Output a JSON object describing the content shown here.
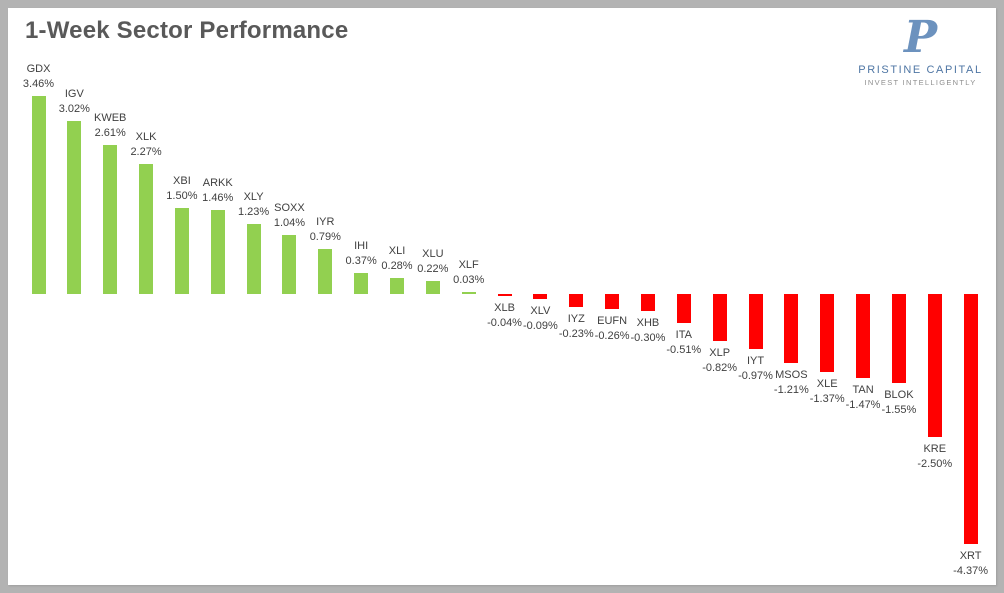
{
  "title": "1-Week Sector Performance",
  "logo": {
    "monogram": "P",
    "name": "PRISTINE CAPITAL",
    "tagline": "INVEST INTELLIGENTLY"
  },
  "colors": {
    "positive_bar": "#92D050",
    "negative_bar": "#FF0000",
    "title_text": "#595959",
    "label_text": "#404040",
    "frame": "#B3B3B3",
    "logo_blue": "#4F76A4",
    "logo_monogram_blue": "#6C92BE",
    "logo_gray": "#8E8E8E"
  },
  "chart_data": {
    "type": "bar",
    "title": "1-Week Sector Performance",
    "xlabel": "",
    "ylabel": "",
    "grid": false,
    "axes_visible": false,
    "legend": "none",
    "label_position": "outside-end",
    "ylim": [
      -4.37,
      3.46
    ],
    "categories": [
      "GDX",
      "IGV",
      "KWEB",
      "XLK",
      "XBI",
      "ARKK",
      "XLY",
      "SOXX",
      "IYR",
      "IHI",
      "XLI",
      "XLU",
      "XLF",
      "XLB",
      "XLV",
      "IYZ",
      "EUFN",
      "XHB",
      "ITA",
      "XLP",
      "IYT",
      "MSOS",
      "XLE",
      "TAN",
      "BLOK",
      "KRE",
      "XRT"
    ],
    "values": [
      3.46,
      3.02,
      2.61,
      2.27,
      1.5,
      1.46,
      1.23,
      1.04,
      0.79,
      0.37,
      0.28,
      0.22,
      0.03,
      -0.04,
      -0.09,
      -0.23,
      -0.26,
      -0.3,
      -0.51,
      -0.82,
      -0.97,
      -1.21,
      -1.37,
      -1.47,
      -1.55,
      -2.5,
      -4.37
    ],
    "display_values": [
      "3.46%",
      "3.02%",
      "2.61%",
      "2.27%",
      "1.50%",
      "1.46%",
      "1.23%",
      "1.04%",
      "0.79%",
      "0.37%",
      "0.28%",
      "0.22%",
      "0.03%",
      "-0.04%",
      "-0.09%",
      "-0.23%",
      "-0.26%",
      "-0.30%",
      "-0.51%",
      "-0.82%",
      "-0.97%",
      "-1.21%",
      "-1.37%",
      "-1.47%",
      "-1.55%",
      "-2.50%",
      "-4.37%"
    ]
  }
}
